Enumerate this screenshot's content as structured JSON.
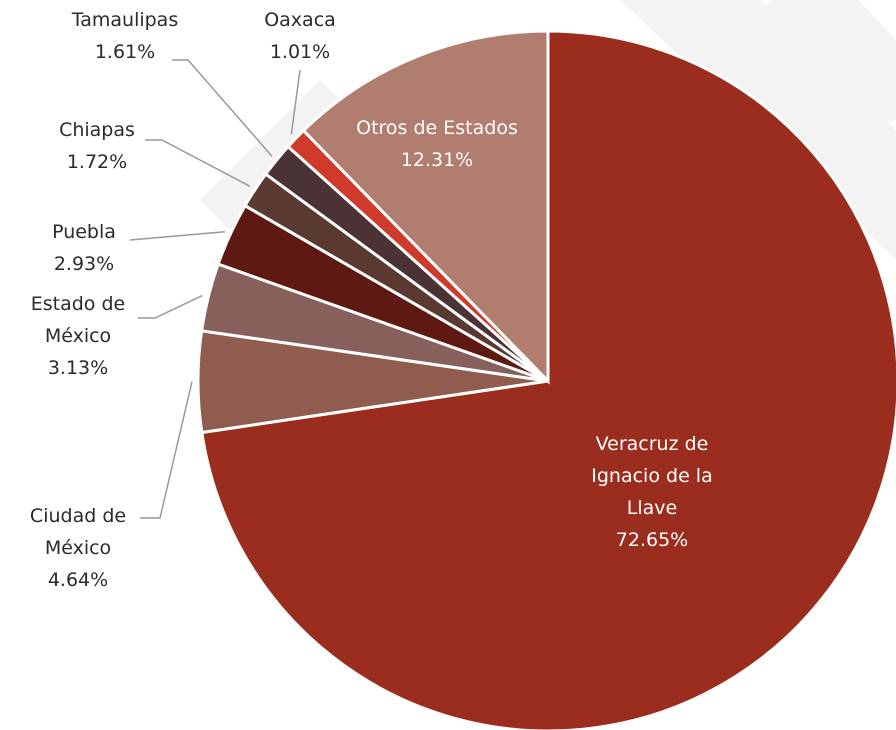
{
  "chart_data": {
    "type": "pie",
    "categories": [
      "Veracruz de Ignacio de la Llave",
      "Ciudad de México",
      "Estado de México",
      "Puebla",
      "Chiapas",
      "Tamaulipas",
      "Oaxaca",
      "Otros de Estados"
    ],
    "values": [
      72.65,
      4.64,
      3.13,
      2.93,
      1.72,
      1.61,
      1.01,
      12.31
    ],
    "value_labels": [
      "72.65%",
      "4.64%",
      "3.13%",
      "2.93%",
      "1.72%",
      "1.61%",
      "1.01%",
      "12.31%"
    ],
    "colors": [
      "#9b2d1f",
      "#8f5c4e",
      "#87605b",
      "#5e1a12",
      "#5a3a30",
      "#4a3235",
      "#d03a2b",
      "#b07d6e"
    ]
  }
}
